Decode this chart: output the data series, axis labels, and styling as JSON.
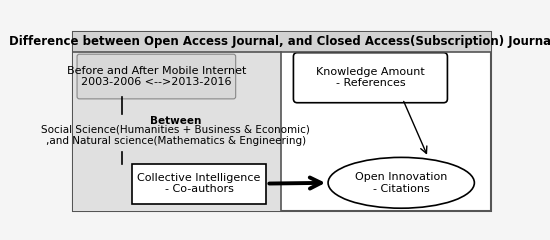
{
  "title": "Difference between Open Access Journal, and Closed Access(Subscription) Journal",
  "title_fontsize": 8.5,
  "title_fontweight": "bold",
  "fig_bg": "#f5f5f5",
  "outer_bg": "#ffffff",
  "title_bar_bg": "#d0d0d0",
  "left_panel_bg": "#e0e0e0",
  "time_text": "Before and After Mobile Internet\n2003-2006 <-->2013-2016",
  "time_fontsize": 8.0,
  "between_text": "Between\nSocial Science(Humanities + Business & Economic)\n,and Natural science(Mathematics & Engineering)",
  "between_fontsize": 7.5,
  "between_fontweight": "bold_first",
  "knowledge_text": "Knowledge Amount\n- References",
  "knowledge_fontsize": 8.0,
  "collective_text": "Collective Intelligence\n- Co-authors",
  "collective_fontsize": 8.0,
  "oi_text": "Open Innovation\n- Citations",
  "oi_fontsize": 8.0
}
